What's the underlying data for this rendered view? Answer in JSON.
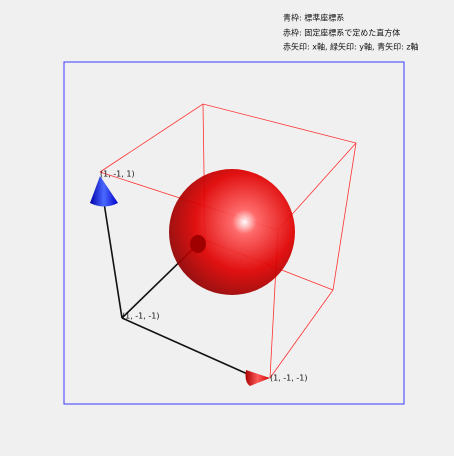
{
  "legend": {
    "lines": [
      "青枠: 標準座標系",
      "赤枠: 固定座標系で定めた直方体",
      "赤矢印: x軸, 緑矢印: y軸, 青矢印: z軸"
    ]
  },
  "points": [
    {
      "label": "(1, -1, 1)"
    },
    {
      "label": "(1, -1, -1)"
    },
    {
      "label": "(1, -1, -1)"
    }
  ]
}
